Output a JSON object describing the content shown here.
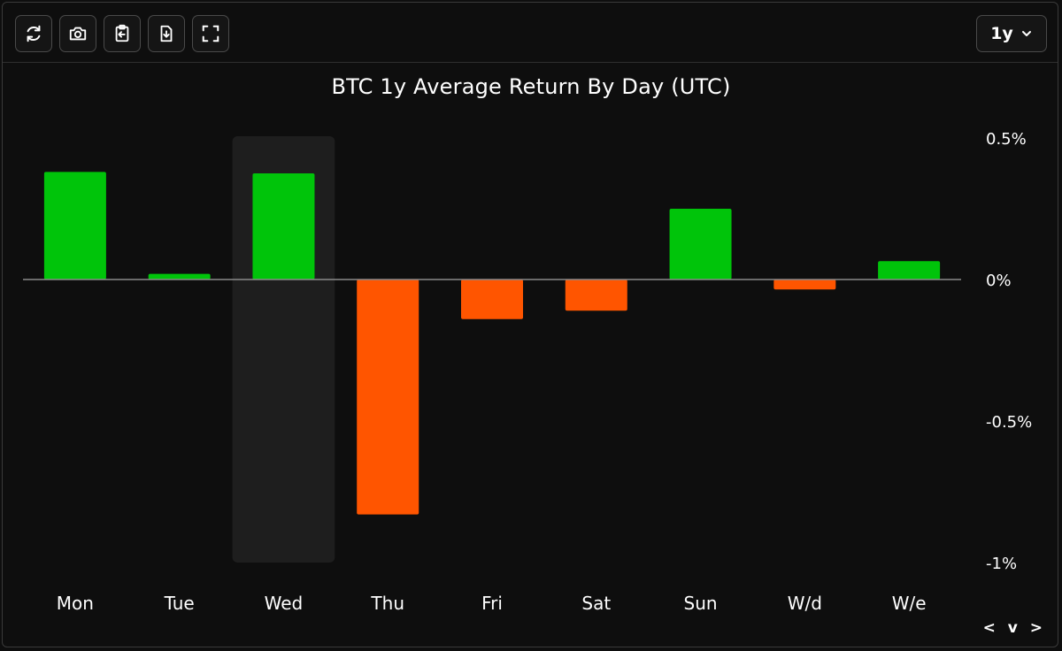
{
  "toolbar": {
    "buttons": [
      {
        "icon": "refresh-icon"
      },
      {
        "icon": "camera-icon"
      },
      {
        "icon": "clipboard-icon"
      },
      {
        "icon": "download-file-icon"
      },
      {
        "icon": "fullscreen-icon"
      }
    ],
    "range_label": "1y"
  },
  "nav_label": "< v >",
  "colors": {
    "positive": "#00c40a",
    "negative": "#ff5500",
    "background": "#0e0e0e",
    "highlight": "#1e1e1e",
    "zero_line": "#8a8a8a"
  },
  "chart_data": {
    "type": "bar",
    "title": "BTC 1y Average Return By Day (UTC)",
    "categories": [
      "Mon",
      "Tue",
      "Wed",
      "Thu",
      "Fri",
      "Sat",
      "Sun",
      "W/d",
      "W/e"
    ],
    "values": [
      0.38,
      0.02,
      0.375,
      -0.83,
      -0.14,
      -0.11,
      0.25,
      -0.035,
      0.065
    ],
    "unit": "%",
    "ylim": [
      -1,
      0.5
    ],
    "yticks": [
      0.5,
      0,
      -0.5,
      -1
    ],
    "ytick_labels": [
      "0.5%",
      "0%",
      "-0.5%",
      "-1%"
    ],
    "highlighted_category": "Wed",
    "axis_position": "right",
    "grid": false
  }
}
